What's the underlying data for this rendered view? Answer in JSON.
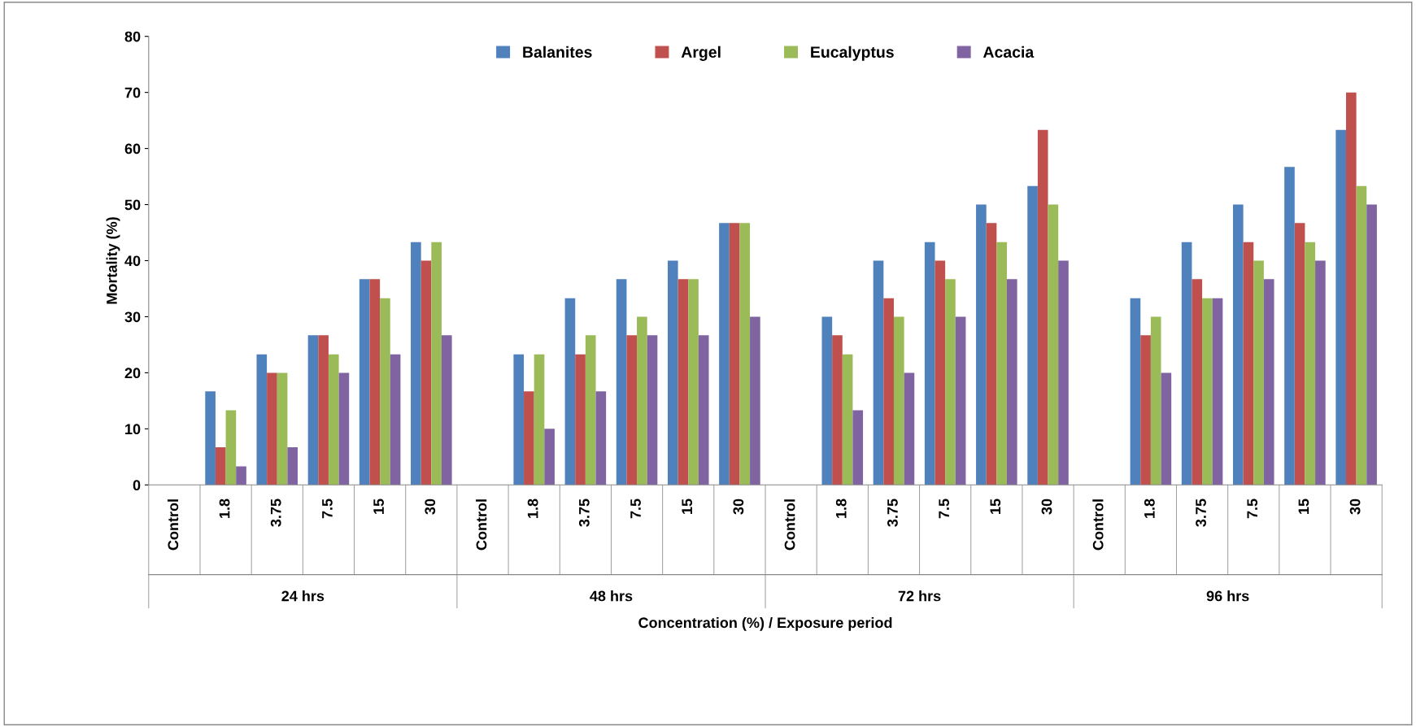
{
  "chart_data": {
    "type": "bar",
    "ylabel": "Mortality (%)",
    "categories": [
      "Control",
      "1.8",
      "3.75",
      "7.5",
      "15",
      "30",
      "Control",
      "1.8",
      "3.75",
      "7.5",
      "15",
      "30",
      "Control",
      "1.8",
      "3.75",
      "7.5",
      "15",
      "30",
      "Control",
      "1.8",
      "3.75",
      "7.5",
      "15",
      "30"
    ],
    "annotations": [
      "24 hrs",
      "48 hrs",
      "72 hrs",
      "96 hrs",
      "Concentration (%) / Exposure period"
    ],
    "series": [
      {
        "name": "Balanites",
        "color": "#4f81bd",
        "values": [
          0,
          16.7,
          23.3,
          26.7,
          36.7,
          43.3,
          0,
          23.3,
          33.3,
          36.7,
          40,
          46.7,
          0,
          30,
          40,
          43.3,
          50,
          53.3,
          0,
          33.3,
          43.3,
          50,
          56.7,
          63.3
        ]
      },
      {
        "name": "Argel",
        "color": "#c0504d",
        "values": [
          0,
          6.7,
          20,
          26.7,
          36.7,
          40,
          0,
          16.7,
          23.3,
          26.7,
          36.7,
          46.7,
          0,
          26.7,
          33.3,
          40,
          46.7,
          63.3,
          0,
          26.7,
          36.7,
          43.3,
          46.7,
          70
        ]
      },
      {
        "name": "Eucalyptus",
        "color": "#9bbb59",
        "values": [
          0,
          13.3,
          20,
          23.3,
          33.3,
          43.3,
          0,
          23.3,
          26.7,
          30,
          36.7,
          46.7,
          0,
          23.3,
          30,
          36.7,
          43.3,
          50,
          0,
          30,
          33.3,
          40,
          43.3,
          53.3
        ]
      },
      {
        "name": "Acacia",
        "color": "#8064a2",
        "values": [
          0,
          3.3,
          6.7,
          20,
          23.3,
          26.7,
          0,
          10,
          16.7,
          26.7,
          26.7,
          30,
          0,
          13.3,
          20,
          30,
          36.7,
          40,
          0,
          20,
          33.3,
          36.7,
          40,
          50
        ]
      }
    ],
    "ylim": [
      0,
      80
    ],
    "yticks": [
      0,
      10,
      20,
      30,
      40,
      50,
      60,
      70,
      80
    ],
    "grid": false,
    "legend": "top"
  }
}
